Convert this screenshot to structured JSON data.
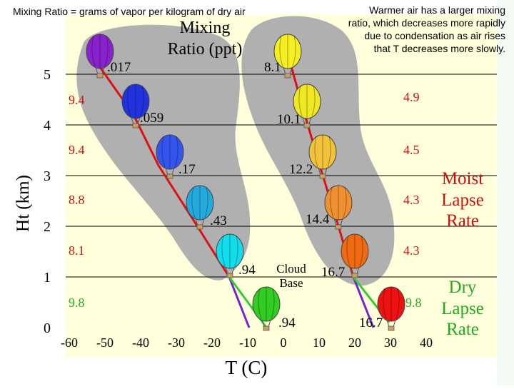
{
  "caption": "Mixing Ratio = grams of vapor per kilogram of dry air",
  "note_lines": [
    "Warmer air has a larger mixing",
    "ratio, which decreases more rapidly",
    "due to condensation as air rises",
    "that T decreases more slowly."
  ],
  "mixing_title": [
    "Mixing",
    "Ratio (ppt)"
  ],
  "cloud_base": [
    "Cloud",
    "Base"
  ],
  "y_axis_title": "Ht (km)",
  "x_axis_title": "T (C)",
  "x_ticks": [
    "-60",
    "-50",
    "-40",
    "-30",
    "-20",
    "-10",
    "0",
    "10",
    "20",
    "30",
    "40"
  ],
  "y_ticks": [
    "0",
    "1",
    "2",
    "3",
    "4",
    "5"
  ],
  "moist_label": [
    "Moist",
    "Lapse",
    "Rate"
  ],
  "dry_label": [
    "Dry",
    "Lapse",
    "Rate"
  ],
  "left_lapse_rates": [
    "9.4",
    "9.4",
    "8.8",
    "8.1",
    "9.8"
  ],
  "right_lapse_rates": [
    "4.9",
    "4.5",
    "4.3",
    "4.3",
    "9.8"
  ],
  "colors": {
    "moist_line": "#dd1111",
    "dry_line": "#7722cc",
    "dry_segment": "#33cc33",
    "cloud_fill": "#b0b0b0",
    "plot_bg": "#ffffdc",
    "left_rate_color": "#cc1111",
    "green_text": "#22aa22"
  },
  "left_column": [
    {
      "ratio": ".017",
      "color": "#8822cc"
    },
    {
      "ratio": ".059",
      "color": "#2233dd"
    },
    {
      "ratio": ".17",
      "color": "#3355ee"
    },
    {
      "ratio": ".43",
      "color": "#22aadd"
    },
    {
      "ratio": ".94",
      "color": "#11ddee"
    },
    {
      "ratio": ".94",
      "color": "#33cc22"
    }
  ],
  "right_column": [
    {
      "ratio": "8.1",
      "color": "#f5ee22"
    },
    {
      "ratio": "10.1",
      "color": "#f0e822"
    },
    {
      "ratio": "12.2",
      "color": "#f2c23a"
    },
    {
      "ratio": "14.4",
      "color": "#f09030"
    },
    {
      "ratio": "16.7",
      "color": "#f06a12"
    },
    {
      "ratio": "16.7",
      "color": "#ee1111"
    }
  ]
}
